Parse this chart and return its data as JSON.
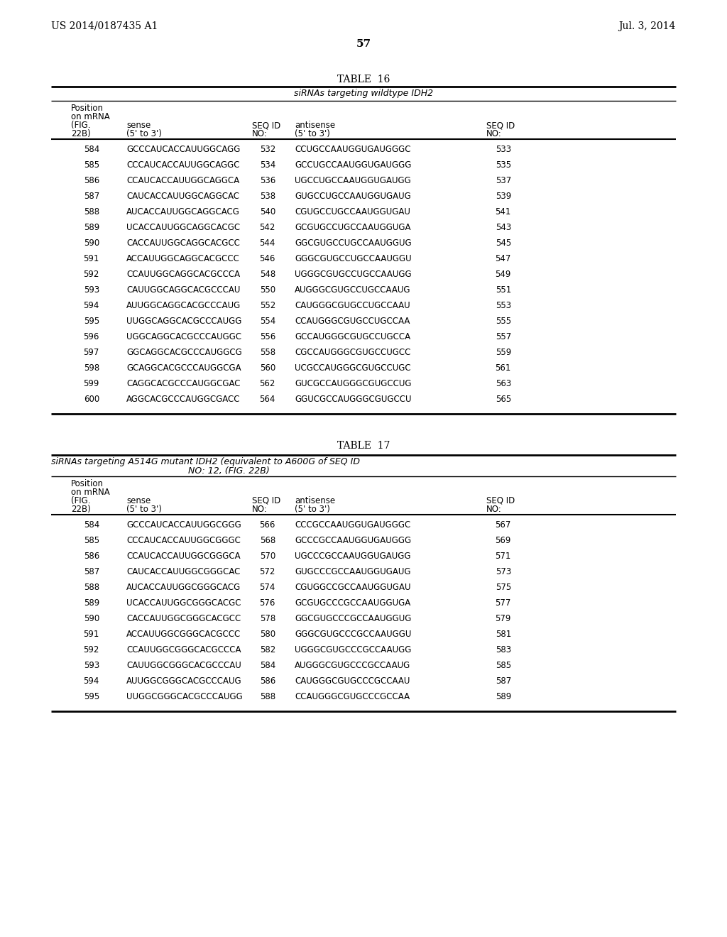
{
  "header_left": "US 2014/0187435 A1",
  "header_right": "Jul. 3, 2014",
  "page_number": "57",
  "table16": {
    "title": "TABLE  16",
    "subtitle": "siRNAs targeting wildtype IDH2",
    "rows": [
      [
        "584",
        "GCCCAUCACCAUUGGCAGG",
        "532",
        "CCUGCCAAUGGUGAUGGGC",
        "533"
      ],
      [
        "585",
        "CCCAUCACCAUUGGCAGGC",
        "534",
        "GCCUGCCAAUGGUGAUGGG",
        "535"
      ],
      [
        "586",
        "CCAUCACCAUUGGCAGGCA",
        "536",
        "UGCCUGCCAAUGGUGAUGG",
        "537"
      ],
      [
        "587",
        "CAUCACCAUUGGCAGGCAC",
        "538",
        "GUGCCUGCCAAUGGUGAUG",
        "539"
      ],
      [
        "588",
        "AUCACCAUUGGCAGGCACG",
        "540",
        "CGUGCCUGCCAAUGGUGAU",
        "541"
      ],
      [
        "589",
        "UCACCAUUGGCAGGCACGC",
        "542",
        "GCGUGCCUGCCAAUGGUGA",
        "543"
      ],
      [
        "590",
        "CACCAUUGGCAGGCACGCC",
        "544",
        "GGCGUGCCUGCCAAUGGUG",
        "545"
      ],
      [
        "591",
        "ACCAUUGGCAGGCACGCCC",
        "546",
        "GGGCGUGCCUGCCAAUGGU",
        "547"
      ],
      [
        "592",
        "CCAUUGGCAGGCACGCCCA",
        "548",
        "UGGGCGUGCCUGCCAAUGG",
        "549"
      ],
      [
        "593",
        "CAUUGGCAGGCACGCCCAU",
        "550",
        "AUGGGCGUGCCUGCCAAUG",
        "551"
      ],
      [
        "594",
        "AUUGGCAGGCACGCCCAUG",
        "552",
        "CAUGGGCGUGCCUGCCAAU",
        "553"
      ],
      [
        "595",
        "UUGGCAGGCACGCCCAUGG",
        "554",
        "CCAUGGGCGUGCCUGCCAA",
        "555"
      ],
      [
        "596",
        "UGGCAGGCACGCCCAUGGC",
        "556",
        "GCCAUGGGCGUGCCUGCCA",
        "557"
      ],
      [
        "597",
        "GGCAGGCACGCCCAUGGCG",
        "558",
        "CGCCAUGGGCGUGCCUGCC",
        "559"
      ],
      [
        "598",
        "GCAGGCACGCCCAUGGCGA",
        "560",
        "UCGCCAUGGGCGUGCCUGC",
        "561"
      ],
      [
        "599",
        "CAGGCACGCCCAUGGCGAC",
        "562",
        "GUCGCCAUGGGCGUGCCUG",
        "563"
      ],
      [
        "600",
        "AGGCACGCCCAUGGCGACC",
        "564",
        "GGUCGCCAUGGGCGUGCCU",
        "565"
      ]
    ]
  },
  "table17": {
    "title": "TABLE  17",
    "subtitle_line1": "siRNAs targeting A514G mutant IDH2 (equivalent to A600G of SEQ ID",
    "subtitle_line2": "NO: 12, (FIG. 22B)",
    "rows": [
      [
        "584",
        "GCCCAUCACCAUUGGCGGG",
        "566",
        "CCCGCCAAUGGUGAUGGGC",
        "567"
      ],
      [
        "585",
        "CCCAUCACCAUUGGCGGGC",
        "568",
        "GCCCGCCAAUGGUGAUGGG",
        "569"
      ],
      [
        "586",
        "CCAUCACCAUUGGCGGGCA",
        "570",
        "UGCCCGCCAAUGGUGAUGG",
        "571"
      ],
      [
        "587",
        "CAUCACCAUUGGCGGGCAC",
        "572",
        "GUGCCCGCCAAUGGUGAUG",
        "573"
      ],
      [
        "588",
        "AUCACCAUUGGCGGGCACG",
        "574",
        "CGUGGCCGCCAAUGGUGAU",
        "575"
      ],
      [
        "589",
        "UCACCAUUGGCGGGCACGC",
        "576",
        "GCGUGCCCGCCAAUGGUGA",
        "577"
      ],
      [
        "590",
        "CACCAUUGGCGGGCACGCC",
        "578",
        "GGCGUGCCCGCCAAUGGUG",
        "579"
      ],
      [
        "591",
        "ACCAUUGGCGGGCACGCCC",
        "580",
        "GGGCGUGCCCGCCAAUGGU",
        "581"
      ],
      [
        "592",
        "CCAUUGGCGGGCACGCCCA",
        "582",
        "UGGGCGUGCCCGCCAAUGG",
        "583"
      ],
      [
        "593",
        "CAUUGGCGGGCACGCCCAU",
        "584",
        "AUGGGCGUGCCCGCCAAUG",
        "585"
      ],
      [
        "594",
        "AUUGGCGGGCACGCCCAUG",
        "586",
        "CAUGGGCGUGCCCGCCAAU",
        "587"
      ],
      [
        "595",
        "UUGGCGGGCACGCCCAUGG",
        "588",
        "CCAUGGGCGUGCCCGCCAA",
        "589"
      ]
    ]
  }
}
